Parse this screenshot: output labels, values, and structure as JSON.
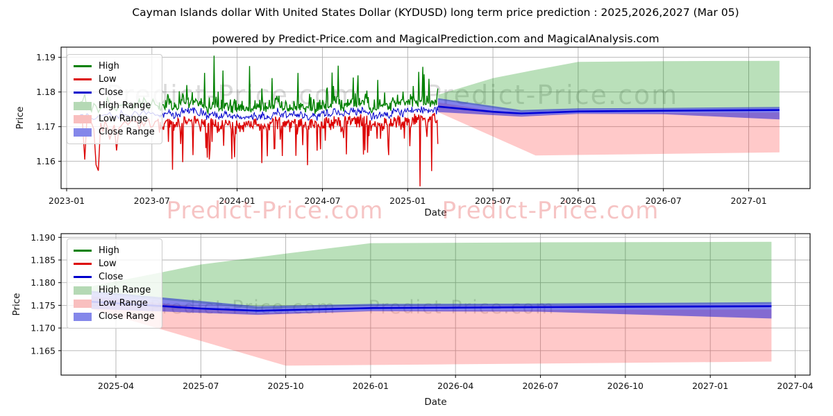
{
  "title": "Cayman Islands dollar With United States Dollar (KYDUSD) long term price prediction : 2025,2026,2027 (Mar 05)",
  "subtitle": "powered by Predict-Price.com and MagicalPrediction.com and MagicalAnalysis.com",
  "watermark_text": "Predict-Price.com",
  "colors": {
    "high_line": "#008000",
    "low_line": "#dc0000",
    "close_line": "#0000cc",
    "close_prediction_line": "#0000d6",
    "high_range_fill": "rgba(0,140,0,0.27)",
    "low_range_fill": "rgba(255,40,40,0.25)",
    "close_range_fill": "rgba(20,20,215,0.53)",
    "high_range_swatch": "#b5d9b5",
    "low_range_swatch": "#f9bfbf",
    "close_range_swatch": "#8487ea",
    "grid": "#b0b0b0",
    "spine": "#000000",
    "tick_text": "#111111",
    "watermark_gray": "rgba(90,90,90,0.22)"
  },
  "legend": {
    "entries": [
      {
        "label": "High",
        "swatch": "line",
        "color_key": "high_line"
      },
      {
        "label": "Low",
        "swatch": "line",
        "color_key": "low_line"
      },
      {
        "label": "Close",
        "swatch": "line",
        "color_key": "close_line"
      },
      {
        "label": "High Range",
        "swatch": "patch",
        "color_key": "high_range_swatch"
      },
      {
        "label": "Low Range",
        "swatch": "patch",
        "color_key": "low_range_swatch"
      },
      {
        "label": "Close Range",
        "swatch": "patch",
        "color_key": "close_range_swatch"
      }
    ]
  },
  "chart_data": {
    "type": "line",
    "title": "Cayman Islands dollar With United States Dollar (KYDUSD) long term price prediction : 2025,2026,2027 (Mar 05)",
    "xlabel": "Date",
    "ylabel": "Price",
    "prediction_series": {
      "close_prediction": [
        [
          "2025-03-05",
          1.1758
        ],
        [
          "2025-07-01",
          1.1743
        ],
        [
          "2025-09-01",
          1.1738
        ],
        [
          "2026-01-01",
          1.1744
        ],
        [
          "2026-07-01",
          1.1746
        ],
        [
          "2027-03-06",
          1.1748
        ]
      ],
      "high_range_top": [
        [
          "2025-03-05",
          1.1792
        ],
        [
          "2025-07-01",
          1.184
        ],
        [
          "2025-10-01",
          1.1864
        ],
        [
          "2026-01-01",
          1.1887
        ],
        [
          "2026-07-01",
          1.1889
        ],
        [
          "2027-03-06",
          1.189
        ]
      ],
      "high_range_bottom": [
        [
          "2025-03-05",
          1.1778
        ],
        [
          "2025-09-01",
          1.1742
        ],
        [
          "2026-01-01",
          1.1749
        ],
        [
          "2027-03-06",
          1.1753
        ]
      ],
      "low_range_top": [
        [
          "2025-03-05",
          1.177
        ],
        [
          "2025-09-01",
          1.1733
        ],
        [
          "2026-01-01",
          1.1739
        ],
        [
          "2027-03-06",
          1.1741
        ]
      ],
      "low_range_bottom": [
        [
          "2025-03-05",
          1.1742
        ],
        [
          "2025-10-01",
          1.1617
        ],
        [
          "2026-04-01",
          1.162
        ],
        [
          "2027-03-06",
          1.1626
        ]
      ],
      "close_range_top": [
        [
          "2025-03-05",
          1.1782
        ],
        [
          "2025-09-01",
          1.1748
        ],
        [
          "2026-01-01",
          1.1753
        ],
        [
          "2026-07-01",
          1.1754
        ],
        [
          "2027-03-06",
          1.1757
        ]
      ],
      "close_range_bottom": [
        [
          "2025-03-05",
          1.1742
        ],
        [
          "2025-09-01",
          1.1729
        ],
        [
          "2026-01-01",
          1.1737
        ],
        [
          "2026-07-01",
          1.1736
        ],
        [
          "2027-03-06",
          1.1721
        ]
      ]
    },
    "historical_params": {
      "start": "2023-01-30",
      "dense_from": "2023-07-10",
      "end": "2025-03-05",
      "sparse_step": 0.16,
      "dense_step": 0.048,
      "close_level": 1.1737,
      "high_level": 1.1766,
      "low_level": 1.1709,
      "seed": 42,
      "spike_up_prob": 0.1,
      "spike_dn_prob": 0.13,
      "spike_up_max": 0.009,
      "spike_dn_max": 0.011,
      "clamp_high": 1.1906,
      "clamp_low": 1.1529,
      "extreme_highs": [
        [
          "2023-10-22",
          1.1855
        ],
        [
          "2023-11-12",
          1.1905
        ],
        [
          "2023-12-01",
          1.1862
        ],
        [
          "2024-01-28",
          1.1875
        ],
        [
          "2024-05-10",
          1.1855
        ],
        [
          "2024-08-04",
          1.1876
        ],
        [
          "2024-09-16",
          1.1848
        ],
        [
          "2025-01-25",
          1.1858
        ],
        [
          "2025-02-16",
          1.1838
        ],
        [
          "2025-03-04",
          1.181
        ]
      ],
      "extreme_lows": [
        [
          "2023-02-07",
          1.1605
        ],
        [
          "2023-03-07",
          1.1573
        ],
        [
          "2023-08-14",
          1.1576
        ],
        [
          "2023-09-28",
          1.1618
        ],
        [
          "2023-12-26",
          1.1612
        ],
        [
          "2024-02-24",
          1.1595
        ],
        [
          "2024-05-30",
          1.1589
        ],
        [
          "2024-10-07",
          1.1625
        ],
        [
          "2024-11-21",
          1.1618
        ],
        [
          "2025-01-28",
          1.1528
        ],
        [
          "2025-02-22",
          1.1572
        ]
      ]
    },
    "subplots": [
      {
        "name": "history-and-forecast",
        "ylabel": "Price",
        "xlabel": "Date",
        "ylim": [
          1.1521,
          1.1929
        ],
        "xlim": [
          "2022-12-20",
          "2027-05-10"
        ],
        "grid": true,
        "legend_position": "upper left",
        "has_historical": true,
        "yticks": [
          {
            "label": "1.19",
            "value": 1.19
          },
          {
            "label": "1.18",
            "value": 1.18
          },
          {
            "label": "1.17",
            "value": 1.17
          },
          {
            "label": "1.16",
            "value": 1.16
          }
        ],
        "xticks": [
          {
            "label": "2023-01"
          },
          {
            "label": "2023-07"
          },
          {
            "label": "2024-01"
          },
          {
            "label": "2024-07"
          },
          {
            "label": "2025-01"
          },
          {
            "label": "2025-07"
          },
          {
            "label": "2026-01"
          },
          {
            "label": "2026-07"
          },
          {
            "label": "2027-01"
          }
        ]
      },
      {
        "name": "forecast-detail",
        "ylabel": "Price",
        "xlabel": "Date",
        "ylim": [
          1.1596,
          1.1908
        ],
        "xlim": [
          "2025-02-03",
          "2027-04-26"
        ],
        "grid": true,
        "legend_position": "upper left",
        "has_historical": false,
        "yticks": [
          {
            "label": "1.190",
            "value": 1.19
          },
          {
            "label": "1.185",
            "value": 1.185
          },
          {
            "label": "1.180",
            "value": 1.18
          },
          {
            "label": "1.175",
            "value": 1.175
          },
          {
            "label": "1.170",
            "value": 1.17
          },
          {
            "label": "1.165",
            "value": 1.165
          }
        ],
        "xticks": [
          {
            "label": "2025-04"
          },
          {
            "label": "2025-07"
          },
          {
            "label": "2025-10"
          },
          {
            "label": "2026-01"
          },
          {
            "label": "2026-04"
          },
          {
            "label": "2026-07"
          },
          {
            "label": "2026-10"
          },
          {
            "label": "2027-01"
          },
          {
            "label": "2027-04"
          }
        ]
      }
    ]
  }
}
